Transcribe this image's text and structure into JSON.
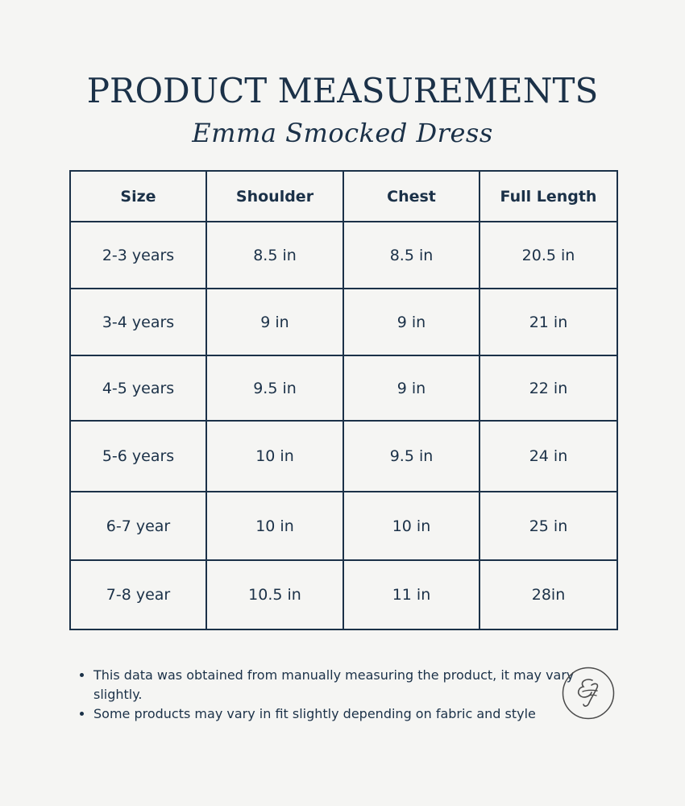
{
  "header": {
    "title": "PRODUCT MEASUREMENTS",
    "subtitle": "Emma Smocked Dress"
  },
  "table": {
    "columns": [
      "Size",
      "Shoulder",
      "Chest",
      "Full Length"
    ],
    "rows": [
      [
        "2-3 years",
        "8.5 in",
        "8.5 in",
        "20.5 in"
      ],
      [
        "3-4 years",
        "9 in",
        "9 in",
        "21 in"
      ],
      [
        "4-5 years",
        "9.5 in",
        "9 in",
        "22 in"
      ],
      [
        "5-6 years",
        "10 in",
        "9.5 in",
        "24 in"
      ],
      [
        "6-7 year",
        "10 in",
        "10 in",
        "25 in"
      ],
      [
        "7-8 year",
        "10.5 in",
        "11 in",
        "28in"
      ]
    ]
  },
  "notes": [
    "This data was obtained from manually measuring the product,  it may vary slightly.",
    "Some products may vary in fit slightly depending on fabric and style"
  ],
  "logo": {
    "monogram": "EF",
    "icon": "brand-monogram-icon"
  },
  "colors": {
    "navy": "#1b3148",
    "background": "#f5f5f3"
  }
}
